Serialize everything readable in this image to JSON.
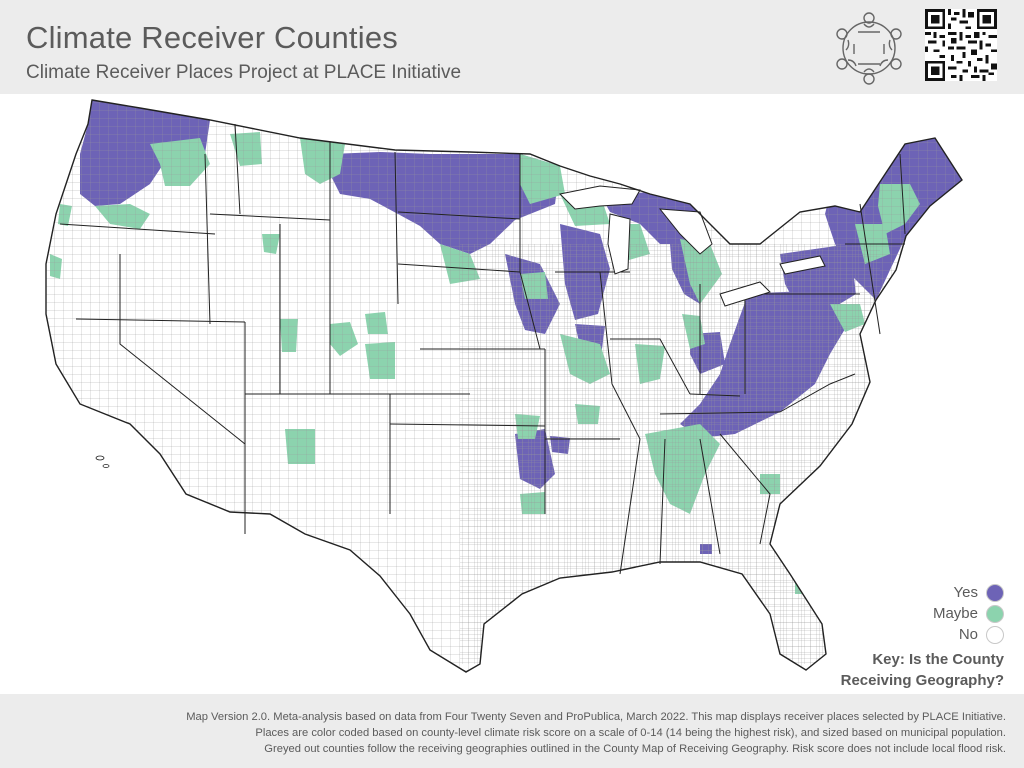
{
  "header": {
    "title": "Climate Receiver Counties",
    "subtitle": "Climate Receiver Places Project at PLACE Initiative"
  },
  "legend": {
    "items": [
      {
        "label": "Yes",
        "color": "#6d63b6"
      },
      {
        "label": "Maybe",
        "color": "#8cd3ae"
      },
      {
        "label": "No",
        "color": "#ffffff"
      }
    ],
    "title_line1": "Key: Is the County",
    "title_line2": "Receiving Geography?"
  },
  "footer": {
    "line1": "Map Version 2.0. Meta-analysis based on data from Four Twenty Seven and ProPublica, March 2022. This map displays receiver places selected by PLACE Initiative.",
    "line2": "Places are color coded based on county-level climate risk score on a scale of 0-14 (14 being the highest risk), and sized based on municipal population.",
    "line3": "Greyed out counties follow the receiving geographies outlined in the County Map of Receiving Geography. Risk score does not include local flood risk."
  },
  "colors": {
    "yes": "#6d63b6",
    "maybe": "#8cd3ae",
    "no": "#ffffff",
    "border": "#222222",
    "band": "#ececec",
    "text": "#5b5b5b"
  },
  "icons": {
    "logo": "people-circle-logo",
    "qr": "qr-code"
  }
}
